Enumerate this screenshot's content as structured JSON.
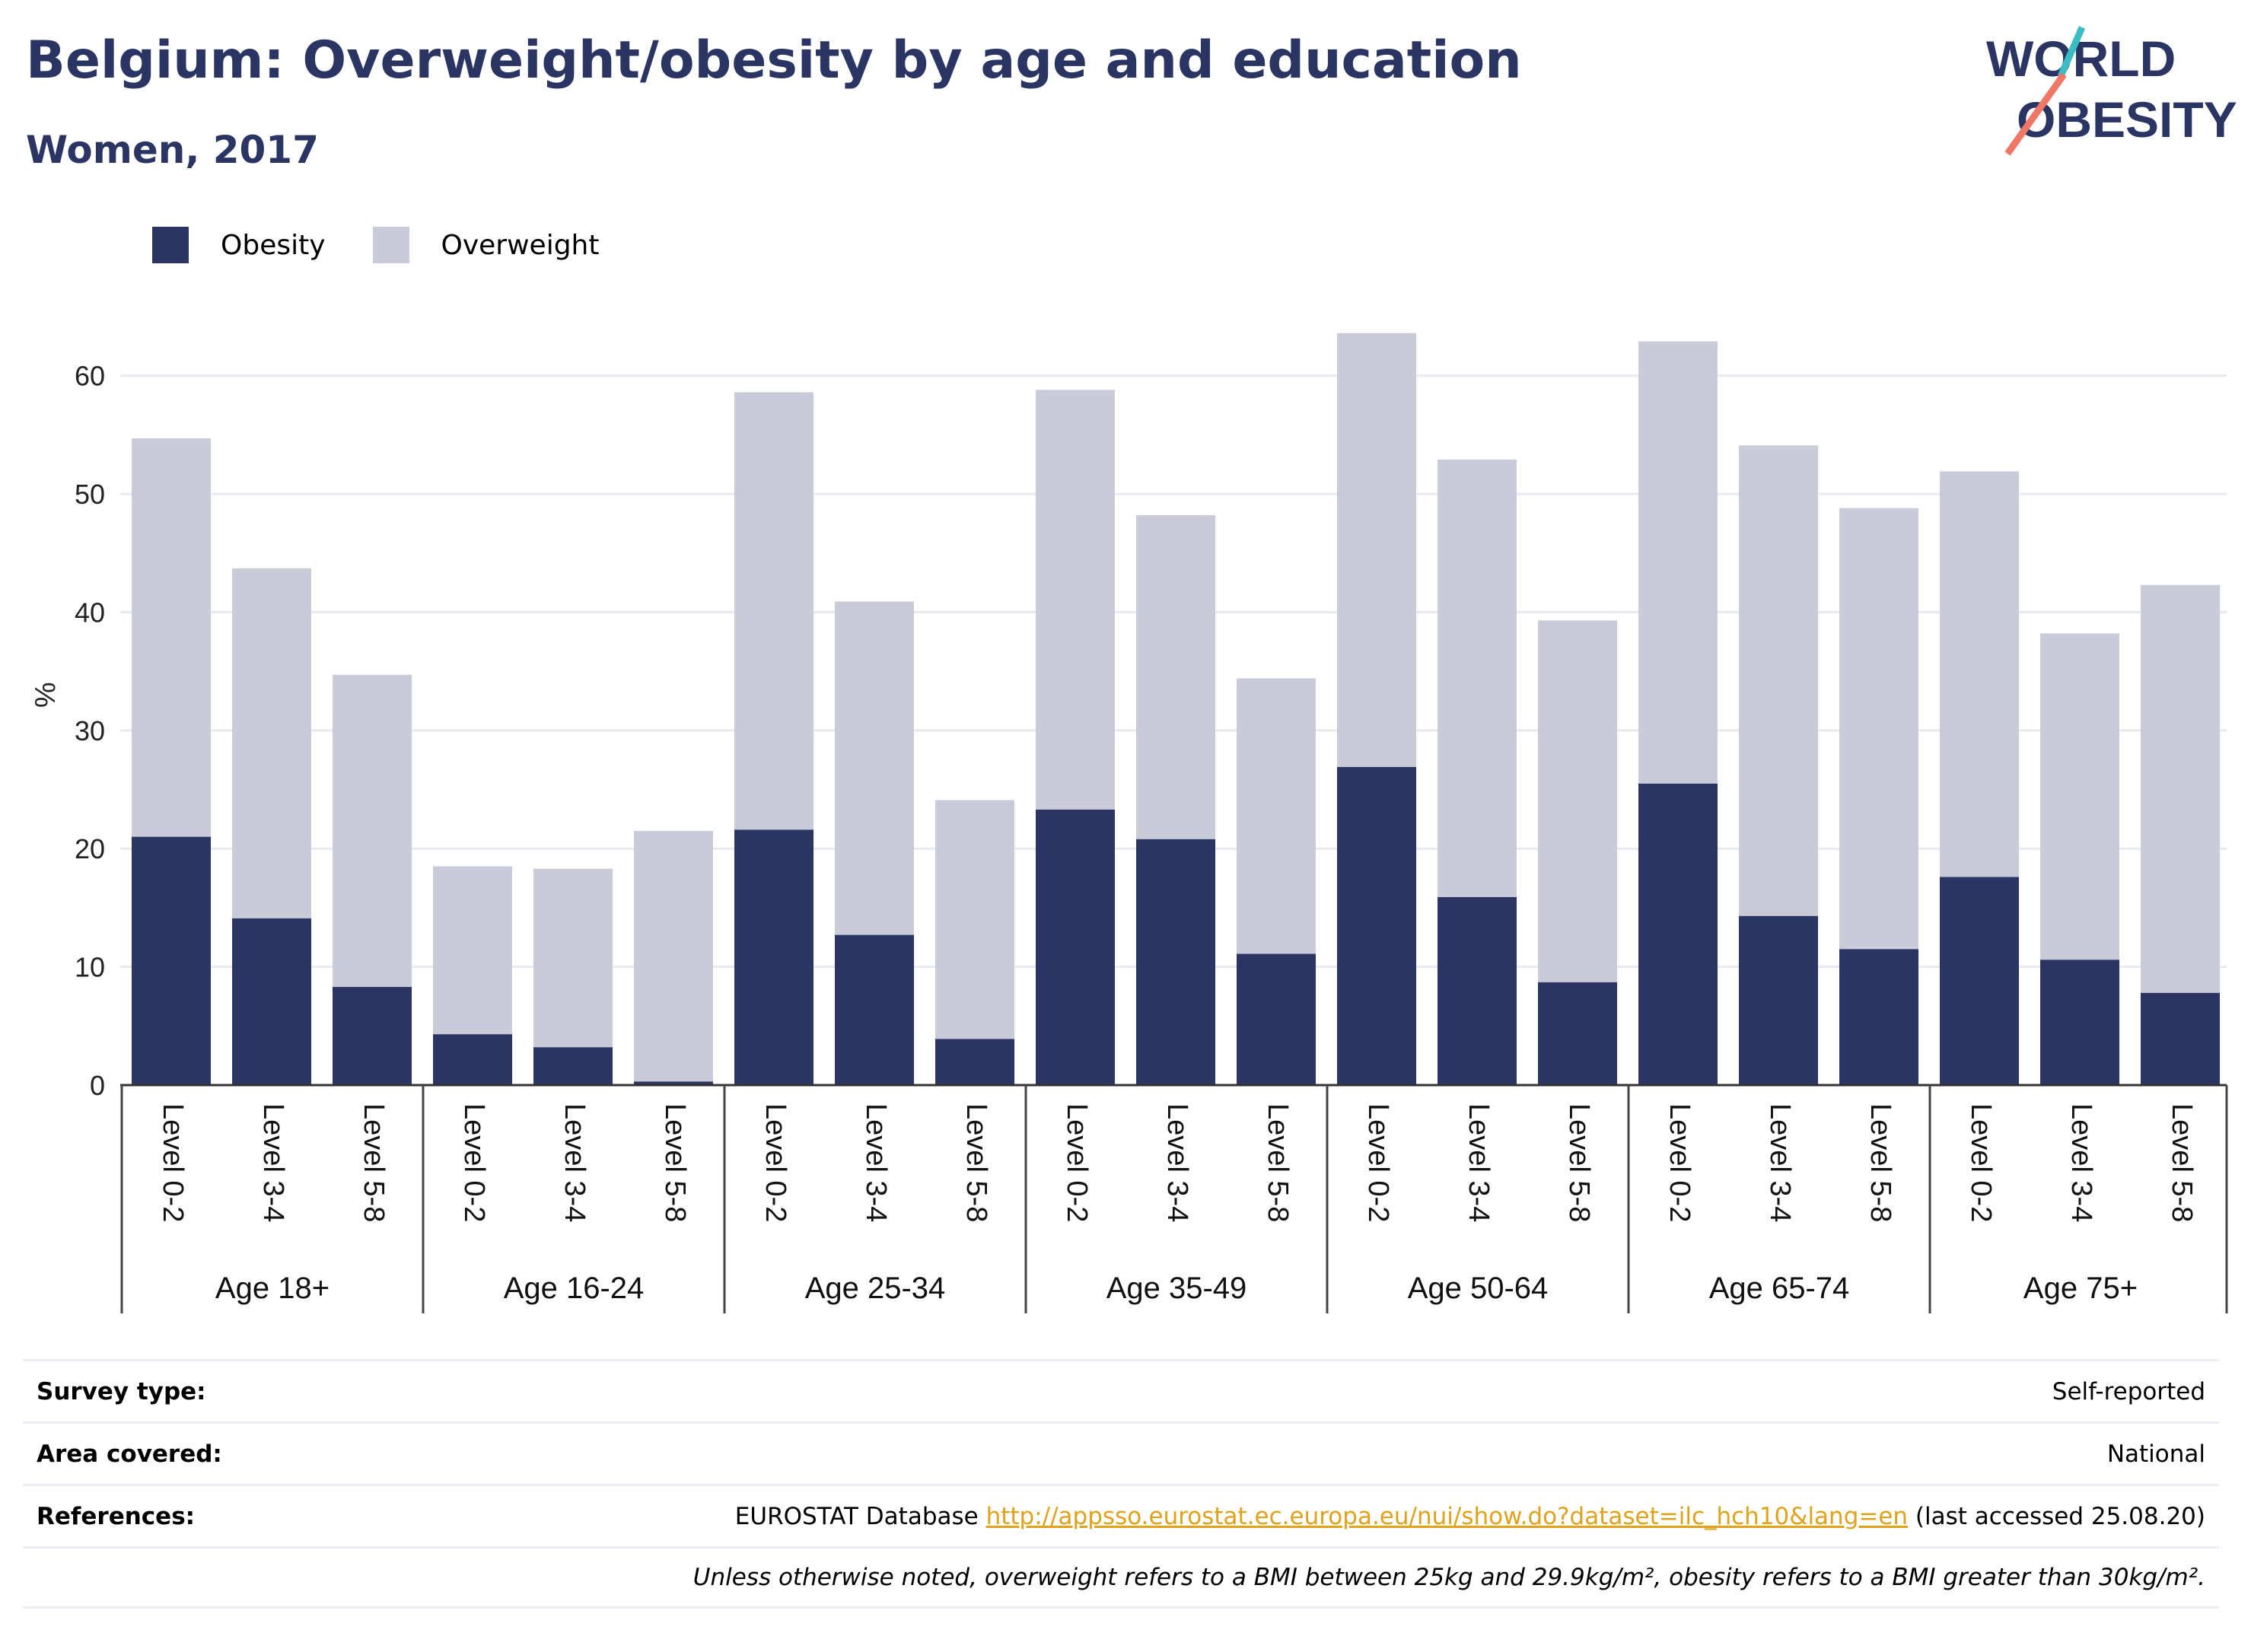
{
  "header": {
    "title": "Belgium: Overweight/obesity by age and education",
    "subtitle": "Women, 2017"
  },
  "logo": {
    "line1": "WORLD",
    "line2": "OBESITY"
  },
  "legend": {
    "obesity": "Obesity",
    "overweight": "Overweight"
  },
  "colors": {
    "obesity": "#2a3563",
    "overweight": "#cacbd8",
    "accent_teal": "#3bbcc5",
    "accent_coral": "#f07765",
    "link": "#e0a21b"
  },
  "chart_data": {
    "type": "bar",
    "stacked": true,
    "ylabel": "%",
    "ylim": [
      0,
      65
    ],
    "yticks": [
      0,
      10,
      20,
      30,
      40,
      50,
      60
    ],
    "grid": true,
    "legend_position": "top-left",
    "groups": [
      "Age 18+",
      "Age 16-24",
      "Age 25-34",
      "Age 35-49",
      "Age 50-64",
      "Age 65-74",
      "Age 75+"
    ],
    "levels": [
      "Level 0-2",
      "Level 3-4",
      "Level 5-8"
    ],
    "series": [
      {
        "name": "Obesity",
        "values": [
          21.0,
          14.1,
          8.3,
          4.3,
          3.2,
          0.3,
          21.6,
          12.7,
          3.9,
          23.3,
          20.8,
          11.1,
          26.9,
          15.9,
          8.7,
          25.5,
          14.3,
          11.5,
          17.6,
          10.6,
          7.8
        ]
      },
      {
        "name": "Overweight",
        "values": [
          33.7,
          29.6,
          26.4,
          14.2,
          15.1,
          21.2,
          37.0,
          28.2,
          20.2,
          35.5,
          27.4,
          23.3,
          36.7,
          37.0,
          30.6,
          37.4,
          39.8,
          37.3,
          34.3,
          27.6,
          34.5
        ]
      }
    ],
    "totals": [
      54.7,
      43.7,
      34.7,
      18.5,
      18.3,
      21.5,
      58.6,
      40.9,
      24.1,
      58.8,
      48.2,
      34.4,
      63.6,
      52.9,
      39.3,
      62.9,
      54.1,
      48.8,
      51.9,
      38.2,
      42.3
    ]
  },
  "info": {
    "survey_label": "Survey type:",
    "survey_value": "Self-reported",
    "area_label": "Area covered:",
    "area_value": "National",
    "refs_label": "References:",
    "refs_prefix": "EUROSTAT Database ",
    "refs_link": "http://appsso.eurostat.ec.europa.eu/nui/show.do?dataset=ilc_hch10&lang=en",
    "refs_suffix": " (last accessed 25.08.20)",
    "note": "Unless otherwise noted, overweight refers to a BMI between 25kg and 29.9kg/m², obesity refers to a BMI greater than 30kg/m²."
  }
}
